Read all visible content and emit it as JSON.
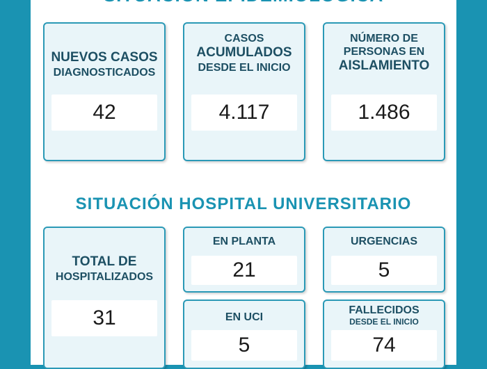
{
  "header": {
    "title_top": "SITUACIÓN EPIDEMIOLÓGICA",
    "title_hospital": "SITUACIÓN HOSPITAL UNIVERSITARIO"
  },
  "epidemiologica": {
    "nuevos": {
      "line1": "NUEVOS CASOS",
      "line2": "DIAGNOSTICADOS",
      "value": "42"
    },
    "acumulados": {
      "line1": "CASOS",
      "line2": "ACUMULADOS",
      "line3": "DESDE EL INICIO",
      "value": "4.117"
    },
    "aislamiento": {
      "line1": "NÚMERO DE",
      "line2": "PERSONAS EN",
      "line3": "AISLAMIENTO",
      "value": "1.486"
    }
  },
  "hospital": {
    "total": {
      "line1": "TOTAL DE",
      "line2": "HOSPITALIZADOS",
      "value": "31"
    },
    "planta": {
      "label": "EN PLANTA",
      "value": "21"
    },
    "urgencias": {
      "label": "URGENCIAS",
      "value": "5"
    },
    "uci": {
      "label": "EN UCI",
      "value": "5"
    },
    "fallecidos": {
      "line1": "FALLECIDOS",
      "line2": "DESDE EL INICIO",
      "value": "74"
    }
  },
  "colors": {
    "accent": "#1a93b2",
    "card_bg": "#e9f5f9",
    "card_border": "#2a99b6",
    "label_text": "#1d4f63"
  }
}
